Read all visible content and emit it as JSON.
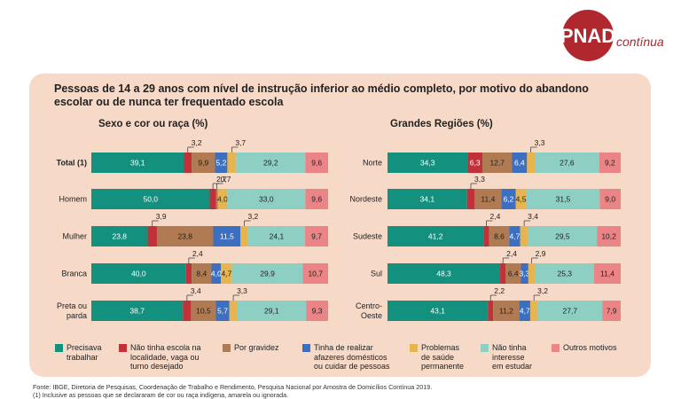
{
  "brand": {
    "logo_main": "PNAD",
    "logo_sub": "contínua",
    "color": "#b0282e"
  },
  "title": "Pessoas de 14 a 29 anos com nível de instrução inferior ao médio completo, por motivo do abandono escolar ou de nunca ter frequentado escola",
  "colors": {
    "trabalhar": "#14907f",
    "escola": "#c0313a",
    "gravidez": "#b07a52",
    "afazeres": "#3c6fbf",
    "saude": "#e6b450",
    "interesse": "#8ecfc3",
    "outros": "#eb8486"
  },
  "legend": [
    {
      "key": "trabalhar",
      "label": [
        "Precisava",
        "trabalhar"
      ]
    },
    {
      "key": "escola",
      "label": [
        "Não tinha escola na",
        "localidade, vaga ou",
        "turno desejado"
      ]
    },
    {
      "key": "gravidez",
      "label": [
        "Por gravidez"
      ]
    },
    {
      "key": "afazeres",
      "label": [
        "Tinha de realizar",
        "afazeres domésticos",
        "ou cuidar de pessoas"
      ]
    },
    {
      "key": "saude",
      "label": [
        "Problemas",
        "de saúde",
        "permanente"
      ]
    },
    {
      "key": "interesse",
      "label": [
        "Não tinha",
        "interesse",
        "em estudar"
      ]
    },
    {
      "key": "outros",
      "label": [
        "Outros motivos"
      ]
    }
  ],
  "chart_data": [
    {
      "type": "bar",
      "orientation": "horizontal-stacked",
      "unit": "%",
      "title": "Sexo e cor ou raça (%)",
      "categories": [
        "Total (1)",
        "Homem",
        "Mulher",
        "Branca",
        "Preta ou parda"
      ],
      "series": [
        {
          "name": "Precisava trabalhar",
          "values": [
            39.1,
            50.0,
            23.8,
            40.0,
            38.7
          ]
        },
        {
          "name": "Não tinha escola na localidade, vaga ou turno desejado",
          "values": [
            3.2,
            2.7,
            3.9,
            2.4,
            3.4
          ]
        },
        {
          "name": "Por gravidez",
          "values": [
            9.9,
            0.7,
            23.8,
            8.4,
            10.5
          ]
        },
        {
          "name": "Tinha de realizar afazeres domésticos ou cuidar de pessoas",
          "values": [
            5.2,
            0,
            11.5,
            4.0,
            5.7
          ]
        },
        {
          "name": "Problemas de saúde permanente",
          "values": [
            3.7,
            4.0,
            3.2,
            4.7,
            3.3
          ]
        },
        {
          "name": "Não tinha interesse em estudar",
          "values": [
            29.2,
            33.0,
            24.1,
            29.9,
            29.1
          ]
        },
        {
          "name": "Outros motivos",
          "values": [
            9.6,
            9.6,
            9.7,
            10.7,
            9.3
          ]
        }
      ]
    },
    {
      "type": "bar",
      "orientation": "horizontal-stacked",
      "unit": "%",
      "title": "Grandes Regiões (%)",
      "categories": [
        "Norte",
        "Nordeste",
        "Sudeste",
        "Sul",
        "Centro-Oeste"
      ],
      "series": [
        {
          "name": "Precisava trabalhar",
          "values": [
            34.3,
            34.1,
            41.2,
            48.3,
            43.1
          ]
        },
        {
          "name": "Não tinha escola na localidade, vaga ou turno desejado",
          "values": [
            6.3,
            3.3,
            2.4,
            2.4,
            2.2
          ]
        },
        {
          "name": "Por gravidez",
          "values": [
            12.7,
            11.4,
            8.6,
            6.4,
            11.2
          ]
        },
        {
          "name": "Tinha de realizar afazeres domésticos ou cuidar de pessoas",
          "values": [
            6.4,
            6.2,
            4.7,
            3.3,
            4.7
          ]
        },
        {
          "name": "Problemas de saúde permanente",
          "values": [
            3.3,
            4.5,
            3.4,
            2.9,
            3.2
          ]
        },
        {
          "name": "Não tinha interesse em estudar",
          "values": [
            27.6,
            31.5,
            29.5,
            25.3,
            27.7
          ]
        },
        {
          "name": "Outros motivos",
          "values": [
            9.2,
            9.0,
            10.2,
            11.4,
            7.9
          ]
        }
      ]
    }
  ],
  "left_rows": [
    {
      "label": [
        "Total (1)"
      ],
      "bold": true,
      "inside": [
        "39,1",
        "",
        "9,9",
        "5,2",
        "",
        "29,2",
        "9,6"
      ],
      "above": [
        {
          "seg": 1,
          "text": "3,2"
        },
        {
          "seg": 4,
          "text": "3,7"
        }
      ]
    },
    {
      "label": [
        "Homem"
      ],
      "bold": false,
      "inside": [
        "50,0",
        "",
        "",
        "",
        "4,0",
        "33,0",
        "9,6"
      ],
      "above": [
        {
          "seg": 1,
          "text": "2,7"
        },
        {
          "seg": 2,
          "text": "0,7"
        }
      ]
    },
    {
      "label": [
        "Mulher"
      ],
      "bold": false,
      "inside": [
        "23,8",
        "",
        "23,8",
        "11,5",
        "",
        "24,1",
        "9,7"
      ],
      "above": [
        {
          "seg": 1,
          "text": "3,9"
        },
        {
          "seg": 4,
          "text": "3,2"
        }
      ]
    },
    {
      "label": [
        "Branca"
      ],
      "bold": false,
      "inside": [
        "40,0",
        "",
        "8,4",
        "4,0",
        "4,7",
        "29,9",
        "10,7"
      ],
      "above": [
        {
          "seg": 1,
          "text": "2,4"
        }
      ]
    },
    {
      "label": [
        "Preta ou",
        "parda"
      ],
      "bold": false,
      "inside": [
        "38,7",
        "",
        "10,5",
        "5,7",
        "",
        "29,1",
        "9,3"
      ],
      "above": [
        {
          "seg": 1,
          "text": "3,4"
        },
        {
          "seg": 4,
          "text": "3,3"
        }
      ]
    }
  ],
  "right_rows": [
    {
      "label": [
        "Norte"
      ],
      "bold": false,
      "inside": [
        "34,3",
        "6,3",
        "12,7",
        "6,4",
        "",
        "27,6",
        "9,2"
      ],
      "above": [
        {
          "seg": 4,
          "text": "3,3"
        }
      ]
    },
    {
      "label": [
        "Nordeste"
      ],
      "bold": false,
      "inside": [
        "34,1",
        "",
        "11,4",
        "6,2",
        "4,5",
        "31,5",
        "9,0"
      ],
      "above": [
        {
          "seg": 1,
          "text": "3,3"
        }
      ]
    },
    {
      "label": [
        "Sudeste"
      ],
      "bold": false,
      "inside": [
        "41,2",
        "",
        "8,6",
        "4,7",
        "",
        "29,5",
        "10,2"
      ],
      "above": [
        {
          "seg": 1,
          "text": "2,4"
        },
        {
          "seg": 4,
          "text": "3,4"
        }
      ]
    },
    {
      "label": [
        "Sul"
      ],
      "bold": false,
      "inside": [
        "48,3",
        "",
        "6,4",
        "3,3",
        "",
        "25,3",
        "11,4"
      ],
      "above": [
        {
          "seg": 1,
          "text": "2,4"
        },
        {
          "seg": 4,
          "text": "2,9"
        }
      ]
    },
    {
      "label": [
        "Centro-",
        "Oeste"
      ],
      "bold": false,
      "inside": [
        "43,1",
        "",
        "11,2",
        "4,7",
        "",
        "27,7",
        "7,9"
      ],
      "above": [
        {
          "seg": 1,
          "text": "2,2"
        },
        {
          "seg": 4,
          "text": "3,2"
        }
      ]
    }
  ],
  "footer": {
    "source": "Fonte: IBGE, Diretoria de Pesquisas, Coordenação de Trabalho e Rendimento, Pesquisa Nacional por Amostra de Domicílios Contínua 2019.",
    "note": "(1) Inclusive as pessoas que se declararam de cor ou raça indígena, amarela ou ignorada."
  }
}
